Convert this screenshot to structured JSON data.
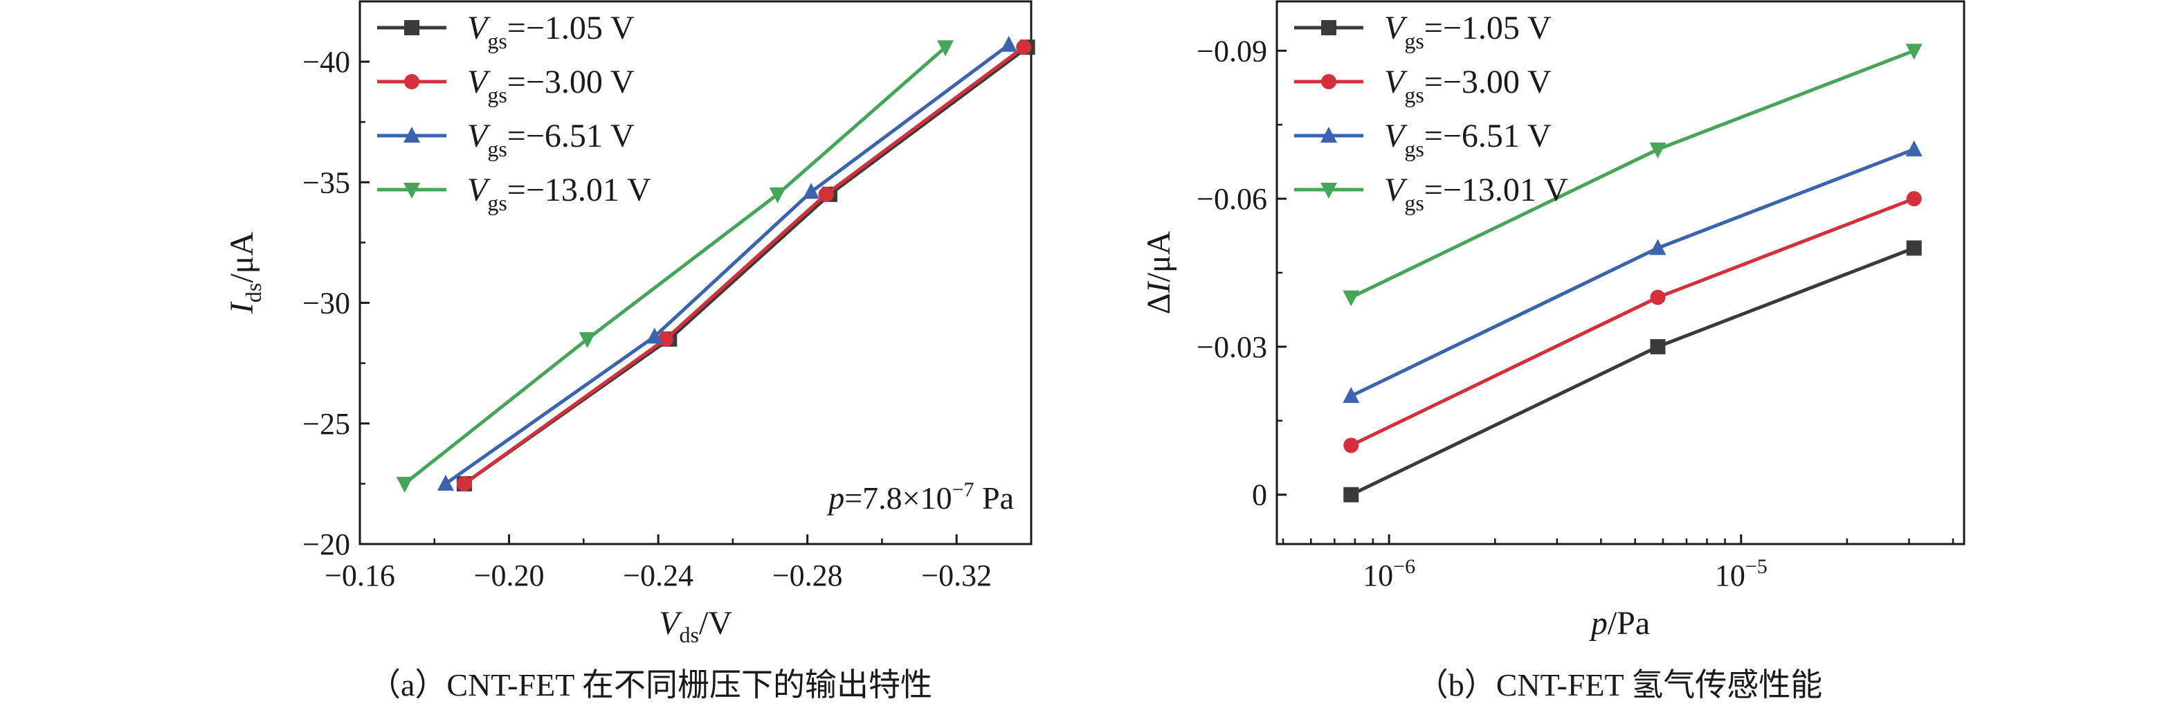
{
  "chart_data": [
    {
      "type": "line",
      "xlabel": "Vds/V",
      "ylabel": "Ids/μA",
      "x_label_parts": {
        "main": "V",
        "sub": "ds",
        "rest": "/V"
      },
      "y_label_parts": {
        "main": "I",
        "sub": "ds",
        "rest": "/μA"
      },
      "xlim": [
        -0.16,
        -0.34
      ],
      "ylim": [
        -20,
        -42.5
      ],
      "x_ticks": [
        -0.16,
        -0.2,
        -0.24,
        -0.28,
        -0.32
      ],
      "x_tick_labels": [
        "−0.16",
        "−0.20",
        "−0.24",
        "−0.28",
        "−0.32"
      ],
      "y_ticks": [
        -20,
        -25,
        -30,
        -35,
        -40
      ],
      "y_tick_labels": [
        "−20",
        "−25",
        "−30",
        "−35",
        "−40"
      ],
      "legend_position": "top-left",
      "annotation": {
        "p_symbol": "p",
        "value": "=7.8×10",
        "exponent": "−7",
        "unit": " Pa"
      },
      "caption": "（a）CNT-FET 在不同栅压下的输出特性",
      "series": [
        {
          "name": "Vgs=−1.05 V",
          "legend_main": "V",
          "legend_sub": "gs",
          "legend_rest": "=−1.05 V",
          "color": "#3a3a3a",
          "marker": "square",
          "points": [
            [
              -0.188,
              -22.5
            ],
            [
              -0.243,
              -28.5
            ],
            [
              -0.286,
              -34.5
            ],
            [
              -0.339,
              -40.6
            ]
          ]
        },
        {
          "name": "Vgs=−3.00 V",
          "legend_main": "V",
          "legend_sub": "gs",
          "legend_rest": "=−3.00 V",
          "color": "#d3303b",
          "marker": "circle",
          "points": [
            [
              -0.188,
              -22.5
            ],
            [
              -0.242,
              -28.5
            ],
            [
              -0.285,
              -34.5
            ],
            [
              -0.338,
              -40.6
            ]
          ]
        },
        {
          "name": "Vgs=−6.51 V",
          "legend_main": "V",
          "legend_sub": "gs",
          "legend_rest": "=−6.51 V",
          "color": "#3a63b0",
          "marker": "triangle-up",
          "points": [
            [
              -0.183,
              -22.5
            ],
            [
              -0.239,
              -28.6
            ],
            [
              -0.281,
              -34.6
            ],
            [
              -0.334,
              -40.7
            ]
          ]
        },
        {
          "name": "Vgs=−13.01 V",
          "legend_main": "V",
          "legend_sub": "gs",
          "legend_rest": "=−13.01 V",
          "color": "#45a65a",
          "marker": "triangle-down",
          "points": [
            [
              -0.172,
              -22.5
            ],
            [
              -0.221,
              -28.5
            ],
            [
              -0.272,
              -34.5
            ],
            [
              -0.317,
              -40.6
            ]
          ]
        }
      ]
    },
    {
      "type": "line",
      "xlabel": "p/Pa",
      "ylabel": "ΔI/μA",
      "x_label_parts": {
        "main": "p",
        "rest": "/Pa"
      },
      "y_label_parts": {
        "prefix": "Δ",
        "main": "I",
        "rest": "/μA"
      },
      "x_scale": "log",
      "xlim": [
        4.8e-07,
        4.3e-05
      ],
      "ylim": [
        0.01,
        -0.1
      ],
      "x_ticks": [
        1e-06,
        1e-05
      ],
      "x_tick_labels": [
        {
          "base": "10",
          "exp": "−6"
        },
        {
          "base": "10",
          "exp": "−5"
        }
      ],
      "y_ticks": [
        0,
        -0.03,
        -0.06,
        -0.09
      ],
      "y_tick_labels": [
        "0",
        "−0.03",
        "−0.06",
        "−0.09"
      ],
      "legend_position": "top-left",
      "caption": "（b）CNT-FET 氢气传感性能",
      "series": [
        {
          "name": "Vgs=−1.05 V",
          "legend_main": "V",
          "legend_sub": "gs",
          "legend_rest": "=−1.05 V",
          "color": "#3a3a3a",
          "marker": "square",
          "points": [
            [
              7.8e-07,
              0.0
            ],
            [
              5.8e-06,
              -0.03
            ],
            [
              3.1e-05,
              -0.05
            ]
          ]
        },
        {
          "name": "Vgs=−3.00 V",
          "legend_main": "V",
          "legend_sub": "gs",
          "legend_rest": "=−3.00 V",
          "color": "#d3303b",
          "marker": "circle",
          "points": [
            [
              7.8e-07,
              -0.01
            ],
            [
              5.8e-06,
              -0.04
            ],
            [
              3.1e-05,
              -0.06
            ]
          ]
        },
        {
          "name": "Vgs=−6.51 V",
          "legend_main": "V",
          "legend_sub": "gs",
          "legend_rest": "=−6.51 V",
          "color": "#3a63b0",
          "marker": "triangle-up",
          "points": [
            [
              7.8e-07,
              -0.02
            ],
            [
              5.8e-06,
              -0.05
            ],
            [
              3.1e-05,
              -0.07
            ]
          ]
        },
        {
          "name": "Vgs=−13.01 V",
          "legend_main": "V",
          "legend_sub": "gs",
          "legend_rest": "=−13.01 V",
          "color": "#45a65a",
          "marker": "triangle-down",
          "points": [
            [
              7.8e-07,
              -0.04
            ],
            [
              5.8e-06,
              -0.07
            ],
            [
              3.1e-05,
              -0.09
            ]
          ]
        }
      ]
    }
  ]
}
